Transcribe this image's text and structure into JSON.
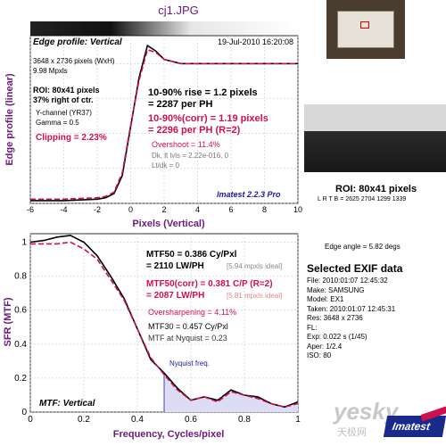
{
  "file_title": "cj1.JPG",
  "edge_chart": {
    "header": "Edge profile: Vertical",
    "date": "19-Jul-2010 16:20:08",
    "pixels": "3648 x 2736 pixels (WxH)",
    "mpxls": "9.98 Mpxls",
    "roi_pos_line1": "ROI: 80x41 pixels",
    "roi_pos_line2": "37% right of ctr.",
    "channel": "Y-channel  (YR37)",
    "gamma": "Gamma = 0.5",
    "clipping": "Clipping =  2.23%",
    "rise1": "10-90% rise = 1.2 pixels",
    "rise2": "= 2287 per PH",
    "corr1": "10-90%(corr) = 1.19 pixels",
    "corr2": "= 2296 per PH  (R=2)",
    "overshoot": "Overshoot = 11.4%",
    "dk": "Dk, lt lvls = 2.22e-016, 0",
    "ltdk": "Lt/dk = 0",
    "brand": "Imatest 2.2.3 Pro",
    "ylabel": "Edge profile (linear)",
    "xlabel": "Pixels (Vertical)",
    "x_ticks": [
      "-6",
      "-4",
      "-2",
      "0",
      "2",
      "4",
      "6",
      "8",
      "10"
    ]
  },
  "mtf_chart": {
    "mtf50": "MTF50 = 0.386 Cy/Pxl",
    "mtf50_lw": "= 2110 LW/PH",
    "mtf50_ideal": "[5.94 mpxls ideal]",
    "mtf50corr": "MTF50(corr) = 0.381 C/P  (R=2)",
    "mtf50corr_lw": "= 2087 LW/PH",
    "mtf50corr_ideal": "[5.81 mpxls ideal]",
    "oversharp": "Oversharpening = 4.11%",
    "mtf30": "MTF30 = 0.457 Cy/Pxl",
    "nyq_val": "MTF at Nyquist = 0.23",
    "nyquist": "Nyquist freq.",
    "corner": "MTF: Vertical",
    "ylabel": "SFR (MTF)",
    "xlabel": "Frequency, Cycles/pixel",
    "x_ticks": [
      "0",
      "0.2",
      "0.4",
      "0.6",
      "0.8",
      "1"
    ],
    "y_ticks": [
      "0",
      "0.2",
      "0.4",
      "0.6",
      "0.8",
      "1"
    ]
  },
  "side": {
    "roi_title": "ROI: 80x41 pixels",
    "lrtb": "L R T B = 2625 2704  1299 1339",
    "edge_angle": "Edge angle = 5.82 degs",
    "exif_title": "Selected EXIF data",
    "exif": [
      "File:  2010:01:07 12:45:32",
      "Make:  SAMSUNG",
      "Model:  EX1",
      "Taken:  2010:01:07 12:45:31",
      "Res:   3648 x 2736",
      "FL:",
      "Exp:   0.022 s  (1/45)",
      "Aper:   1/2.4",
      "ISO:   80"
    ],
    "watermark": "yesky",
    "watermark_sub": "天极网",
    "logo": "Imatest"
  },
  "colors": {
    "measured": "#000000",
    "corrected": "#d0104c",
    "accent": "#6a1a7a",
    "fill": "#dcdcf5",
    "brand": "#1a1aa0"
  },
  "chart_data": [
    {
      "type": "line",
      "title": "Edge profile: Vertical",
      "xlabel": "Pixels (Vertical)",
      "ylabel": "Edge profile (linear)",
      "xlim": [
        -6,
        10
      ],
      "series": [
        {
          "x": [
            -6,
            -4,
            -2,
            -1.5,
            -1,
            -0.5,
            0,
            0.5,
            1,
            1.5,
            2,
            3,
            4,
            6,
            8,
            10
          ],
          "y": [
            0.02,
            0.02,
            0.03,
            0.04,
            0.07,
            0.2,
            0.55,
            0.9,
            1.13,
            1.09,
            1.03,
            1.0,
            1.0,
            1.0,
            1.0,
            1.0
          ]
        },
        {
          "x": [
            -6,
            -4,
            -2,
            -1.5,
            -1,
            -0.5,
            0,
            0.5,
            1,
            1.5,
            2,
            3,
            4,
            6,
            8,
            10
          ],
          "y": [
            0.03,
            0.03,
            0.04,
            0.05,
            0.08,
            0.22,
            0.56,
            0.88,
            1.1,
            1.08,
            1.03,
            1.0,
            1.0,
            1.0,
            1.0,
            1.0
          ]
        }
      ]
    },
    {
      "type": "line",
      "title": "MTF: Vertical",
      "xlabel": "Frequency, Cycles/pixel",
      "ylabel": "SFR (MTF)",
      "xlim": [
        0,
        1
      ],
      "ylim": [
        0,
        1.05
      ],
      "series": [
        {
          "x": [
            0,
            0.05,
            0.1,
            0.15,
            0.2,
            0.25,
            0.3,
            0.35,
            0.4,
            0.45,
            0.5,
            0.55,
            0.6,
            0.65,
            0.7,
            0.75,
            0.8,
            0.85,
            0.9,
            0.95,
            1.0
          ],
          "y": [
            1.0,
            1.01,
            1.03,
            1.04,
            1.0,
            0.92,
            0.8,
            0.67,
            0.49,
            0.31,
            0.23,
            0.14,
            0.07,
            0.09,
            0.07,
            0.13,
            0.1,
            0.09,
            0.05,
            0.03,
            0.06
          ]
        },
        {
          "x": [
            0,
            0.05,
            0.1,
            0.15,
            0.2,
            0.25,
            0.3,
            0.35,
            0.4,
            0.45,
            0.5,
            0.55,
            0.6,
            0.65,
            0.7,
            0.75,
            0.8,
            0.85,
            0.9,
            0.95,
            1.0
          ],
          "y": [
            0.99,
            0.99,
            0.99,
            1.0,
            0.96,
            0.9,
            0.78,
            0.66,
            0.49,
            0.32,
            0.22,
            0.13,
            0.07,
            0.09,
            0.06,
            0.12,
            0.1,
            0.08,
            0.05,
            0.03,
            0.05
          ]
        }
      ],
      "annotations": [
        "Nyquist freq. at 0.5"
      ]
    }
  ]
}
